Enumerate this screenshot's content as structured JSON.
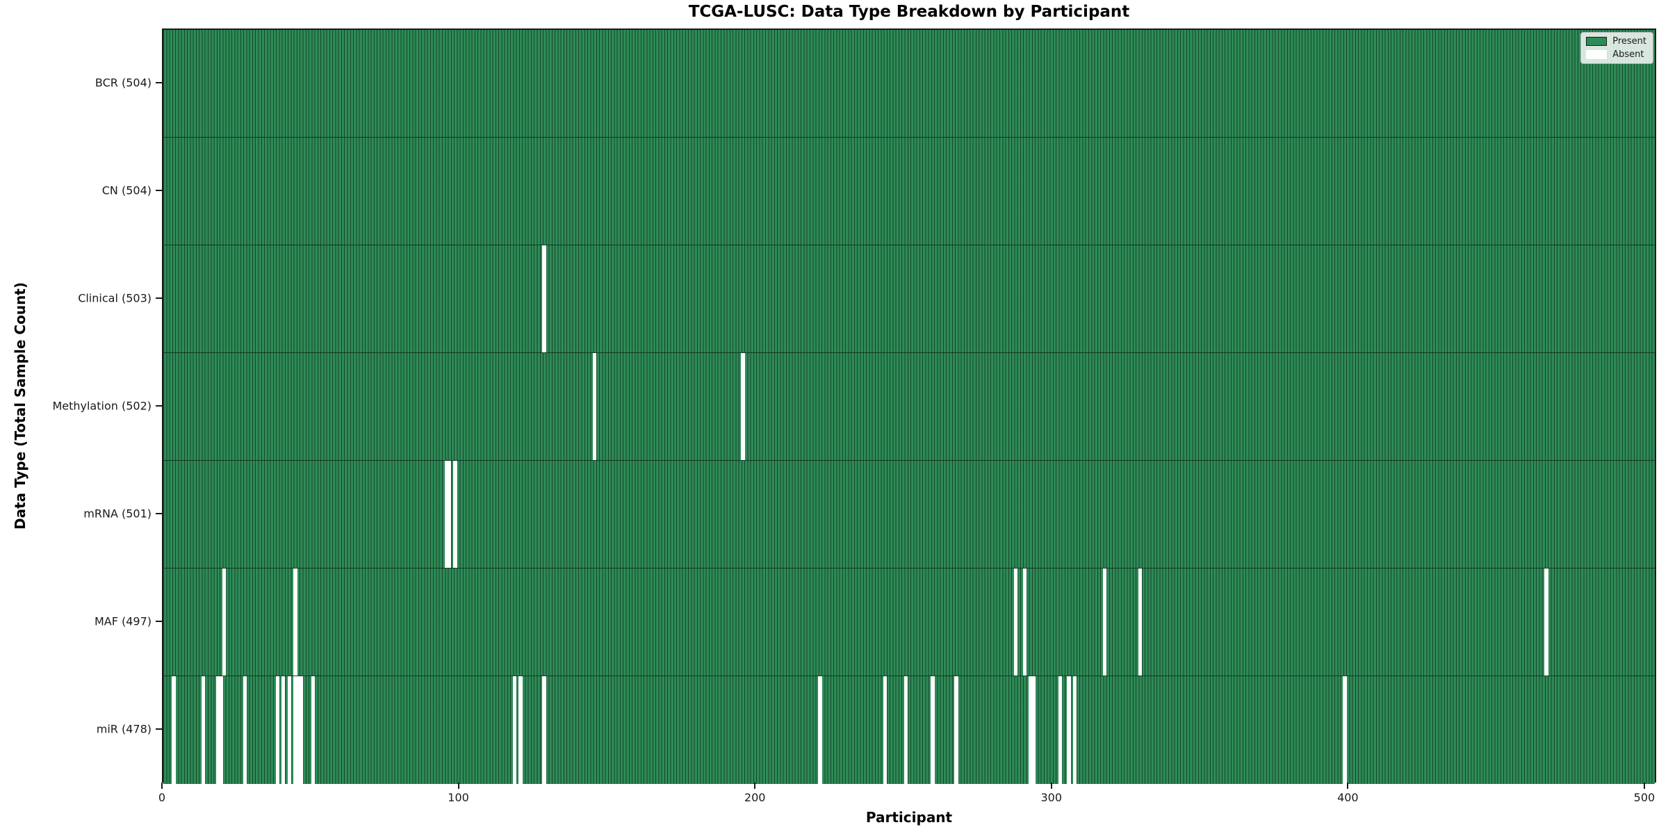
{
  "title": "TCGA-LUSC: Data Type Breakdown by Participant",
  "axes": {
    "x_label": "Participant",
    "y_label": "Data Type (Total Sample Count)",
    "x_ticks": [
      0,
      100,
      200,
      300,
      400,
      500
    ]
  },
  "legend": {
    "items": [
      {
        "label": "Present",
        "color": "#2e8b57",
        "border": "#1a1a1a"
      },
      {
        "label": "Absent",
        "color": "#ffffff",
        "border": "#ffffff"
      }
    ]
  },
  "colors": {
    "present": "#2e8b57",
    "absent": "#ffffff",
    "bar_edge": "rgba(0,0,0,0.5)"
  },
  "chart_data": {
    "type": "heatmap",
    "title": "TCGA-LUSC: Data Type Breakdown by Participant",
    "xlabel": "Participant",
    "ylabel": "Data Type (Total Sample Count)",
    "legend_entries": [
      "Present",
      "Absent"
    ],
    "legend_position": "upper right",
    "total_participants": 504,
    "xlim": [
      0,
      504
    ],
    "x_ticks": [
      0,
      100,
      200,
      300,
      400,
      500
    ],
    "row_order_note": "rows listed top to bottom; cells are Present (green) for every participant except the listed absent indices",
    "rows": [
      {
        "label": "BCR (504)",
        "name": "BCR",
        "present_count": 504,
        "absent_count": 0,
        "absent_participants": []
      },
      {
        "label": "CN (504)",
        "name": "CN",
        "present_count": 504,
        "absent_count": 0,
        "absent_participants": []
      },
      {
        "label": "Clinical (503)",
        "name": "Clinical",
        "present_count": 503,
        "absent_count": 1,
        "absent_participants": [
          128
        ]
      },
      {
        "label": "Methylation (502)",
        "name": "Methylation",
        "present_count": 502,
        "absent_count": 2,
        "absent_participants": [
          145,
          195
        ]
      },
      {
        "label": "mRNA (501)",
        "name": "mRNA",
        "present_count": 501,
        "absent_count": 3,
        "absent_participants": [
          95,
          96,
          98
        ]
      },
      {
        "label": "MAF (497)",
        "name": "MAF",
        "present_count": 497,
        "absent_count": 7,
        "absent_participants": [
          20,
          44,
          287,
          290,
          317,
          329,
          466
        ]
      },
      {
        "label": "miR (478)",
        "name": "miR",
        "present_count": 478,
        "absent_count": 26,
        "absent_participants": [
          3,
          13,
          18,
          19,
          27,
          38,
          40,
          42,
          44,
          45,
          46,
          50,
          118,
          120,
          128,
          221,
          243,
          250,
          259,
          267,
          292,
          293,
          302,
          305,
          307,
          398
        ]
      }
    ]
  }
}
